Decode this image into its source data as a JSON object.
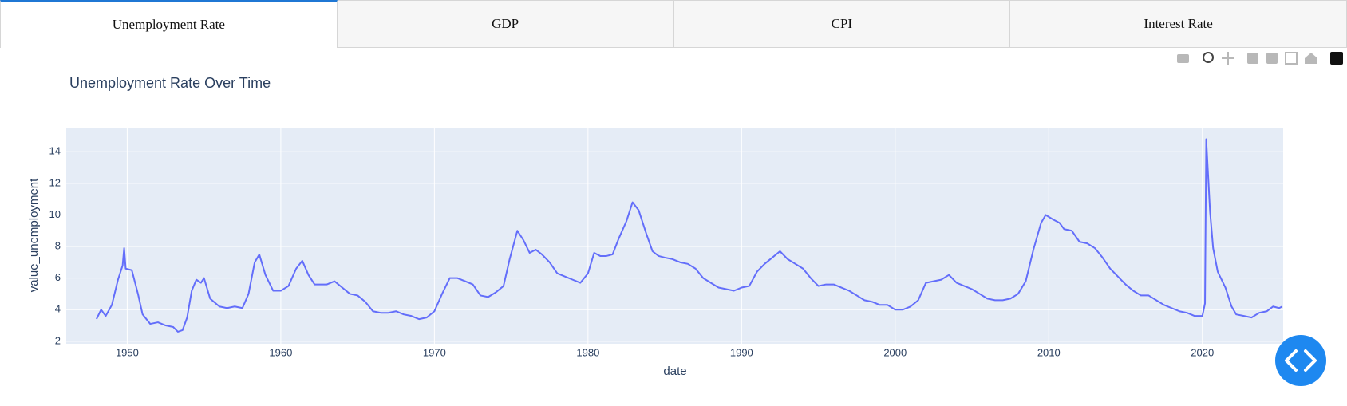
{
  "tabs": [
    "Unemployment Rate",
    "GDP",
    "CPI",
    "Interest Rate"
  ],
  "chart_data": {
    "type": "line",
    "title": "Unemployment Rate Over Time",
    "x_label": "date",
    "y_label": "value_unemployment",
    "color": "#636efa",
    "grid": true,
    "xlim": [
      1946.03,
      2025.26
    ],
    "ylim": [
      1.84,
      15.53
    ],
    "xticks": [
      1950,
      1960,
      1970,
      1980,
      1990,
      2000,
      2010,
      2020
    ],
    "yticks": [
      2,
      4,
      6,
      8,
      10,
      12,
      14
    ],
    "x": [
      1948.0,
      1948.3,
      1948.6,
      1949.0,
      1949.4,
      1949.7,
      1949.8,
      1949.9,
      1950.3,
      1950.7,
      1951.0,
      1951.5,
      1952.0,
      1952.5,
      1953.0,
      1953.3,
      1953.6,
      1953.9,
      1954.2,
      1954.5,
      1954.8,
      1955.0,
      1955.4,
      1956.0,
      1956.5,
      1957.0,
      1957.5,
      1957.9,
      1958.3,
      1958.6,
      1959.0,
      1959.5,
      1960.0,
      1960.5,
      1961.0,
      1961.4,
      1961.8,
      1962.2,
      1963.0,
      1963.5,
      1964.0,
      1964.5,
      1965.0,
      1965.5,
      1966.0,
      1966.5,
      1967.0,
      1967.5,
      1968.0,
      1968.5,
      1969.0,
      1969.5,
      1970.0,
      1970.5,
      1971.0,
      1971.5,
      1972.0,
      1972.5,
      1973.0,
      1973.5,
      1974.0,
      1974.5,
      1974.9,
      1975.4,
      1975.8,
      1976.2,
      1976.6,
      1977.0,
      1977.5,
      1978.0,
      1978.5,
      1979.0,
      1979.5,
      1980.0,
      1980.4,
      1980.8,
      1981.2,
      1981.6,
      1982.0,
      1982.5,
      1982.9,
      1983.3,
      1983.8,
      1984.2,
      1984.6,
      1985.0,
      1985.5,
      1986.0,
      1986.5,
      1987.0,
      1987.5,
      1988.0,
      1988.5,
      1989.0,
      1989.5,
      1990.0,
      1990.5,
      1991.0,
      1991.5,
      1992.0,
      1992.5,
      1993.0,
      1993.5,
      1994.0,
      1994.5,
      1995.0,
      1995.5,
      1996.0,
      1996.5,
      1997.0,
      1997.5,
      1998.0,
      1998.5,
      1999.0,
      1999.5,
      2000.0,
      2000.5,
      2001.0,
      2001.5,
      2002.0,
      2002.5,
      2003.0,
      2003.5,
      2004.0,
      2004.5,
      2005.0,
      2005.5,
      2006.0,
      2006.5,
      2007.0,
      2007.5,
      2008.0,
      2008.5,
      2009.0,
      2009.5,
      2009.8,
      2010.3,
      2010.7,
      2011.0,
      2011.5,
      2012.0,
      2012.5,
      2013.0,
      2013.5,
      2014.0,
      2014.5,
      2015.0,
      2015.5,
      2016.0,
      2016.5,
      2017.0,
      2017.5,
      2018.0,
      2018.5,
      2019.0,
      2019.5,
      2020.0,
      2020.17,
      2020.25,
      2020.5,
      2020.7,
      2021.0,
      2021.5,
      2021.9,
      2022.2,
      2022.7,
      2023.2,
      2023.7,
      2024.2,
      2024.6,
      2025.0,
      2025.2
    ],
    "values": [
      3.4,
      4.0,
      3.6,
      4.3,
      5.9,
      6.8,
      7.9,
      6.6,
      6.5,
      5.0,
      3.7,
      3.1,
      3.2,
      3.0,
      2.9,
      2.6,
      2.7,
      3.5,
      5.2,
      5.9,
      5.7,
      6.0,
      4.7,
      4.2,
      4.1,
      4.2,
      4.1,
      5.0,
      7.0,
      7.5,
      6.2,
      5.2,
      5.2,
      5.5,
      6.6,
      7.1,
      6.2,
      5.6,
      5.6,
      5.8,
      5.4,
      5.0,
      4.9,
      4.5,
      3.9,
      3.8,
      3.8,
      3.9,
      3.7,
      3.6,
      3.4,
      3.5,
      3.9,
      5.0,
      6.0,
      6.0,
      5.8,
      5.6,
      4.9,
      4.8,
      5.1,
      5.5,
      7.2,
      9.0,
      8.4,
      7.6,
      7.8,
      7.5,
      7.0,
      6.3,
      6.1,
      5.9,
      5.7,
      6.3,
      7.6,
      7.4,
      7.4,
      7.5,
      8.5,
      9.6,
      10.8,
      10.3,
      8.8,
      7.7,
      7.4,
      7.3,
      7.2,
      7.0,
      6.9,
      6.6,
      6.0,
      5.7,
      5.4,
      5.3,
      5.2,
      5.4,
      5.5,
      6.4,
      6.9,
      7.3,
      7.7,
      7.2,
      6.9,
      6.6,
      6.0,
      5.5,
      5.6,
      5.6,
      5.4,
      5.2,
      4.9,
      4.6,
      4.5,
      4.3,
      4.3,
      4.0,
      4.0,
      4.2,
      4.6,
      5.7,
      5.8,
      5.9,
      6.2,
      5.7,
      5.5,
      5.3,
      5.0,
      4.7,
      4.6,
      4.6,
      4.7,
      5.0,
      5.8,
      7.8,
      9.5,
      10.0,
      9.7,
      9.5,
      9.1,
      9.0,
      8.3,
      8.2,
      7.9,
      7.3,
      6.6,
      6.1,
      5.6,
      5.2,
      4.9,
      4.9,
      4.6,
      4.3,
      4.1,
      3.9,
      3.8,
      3.6,
      3.6,
      4.4,
      14.8,
      10.2,
      7.9,
      6.4,
      5.4,
      4.2,
      3.7,
      3.6,
      3.5,
      3.8,
      3.9,
      4.2,
      4.1,
      4.2
    ]
  }
}
